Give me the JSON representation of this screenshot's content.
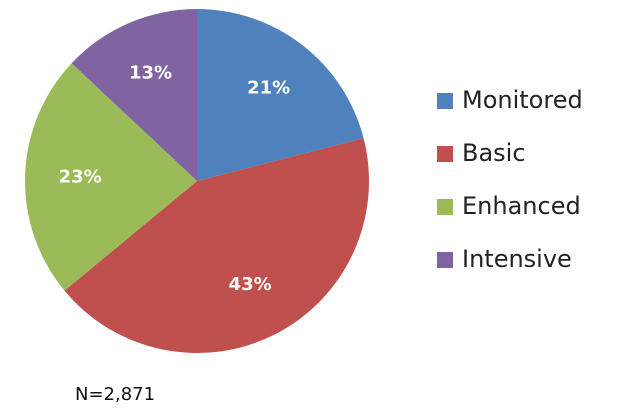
{
  "chart_data": {
    "type": "pie",
    "categories": [
      "Monitored",
      "Basic",
      "Enhanced",
      "Intensive"
    ],
    "values": [
      21,
      43,
      23,
      13
    ],
    "value_labels": [
      "21%",
      "43%",
      "23%",
      "13%"
    ],
    "colors": [
      "#4f81bd",
      "#c0504d",
      "#9bbb59",
      "#8064a2"
    ],
    "legend": "right",
    "annotation": "N=2,871"
  }
}
